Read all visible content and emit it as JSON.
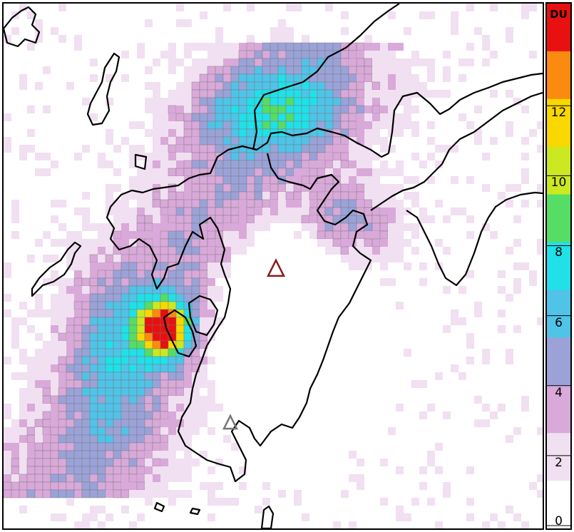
{
  "colorbar": {
    "unit": "DU",
    "min": 0,
    "max": 15,
    "ticks": [
      {
        "value": 0,
        "label": "0"
      },
      {
        "value": 2,
        "label": "2"
      },
      {
        "value": 4,
        "label": "4"
      },
      {
        "value": 6,
        "label": "6"
      },
      {
        "value": 8,
        "label": "8"
      },
      {
        "value": 10,
        "label": "10"
      },
      {
        "value": 12,
        "label": "12"
      }
    ],
    "colors": [
      "#ffffff",
      "#f1e0f1",
      "#d9a9d9",
      "#9aa2d8",
      "#4fc3e8",
      "#20e0e8",
      "#55dd66",
      "#cce820",
      "#f8d800",
      "#fb8a10",
      "#e81010"
    ]
  },
  "markers": [
    {
      "name": "volcano-triangle",
      "color": "#8b1a1a"
    },
    {
      "name": "volcano-triangle",
      "color": "#777777"
    }
  ]
}
